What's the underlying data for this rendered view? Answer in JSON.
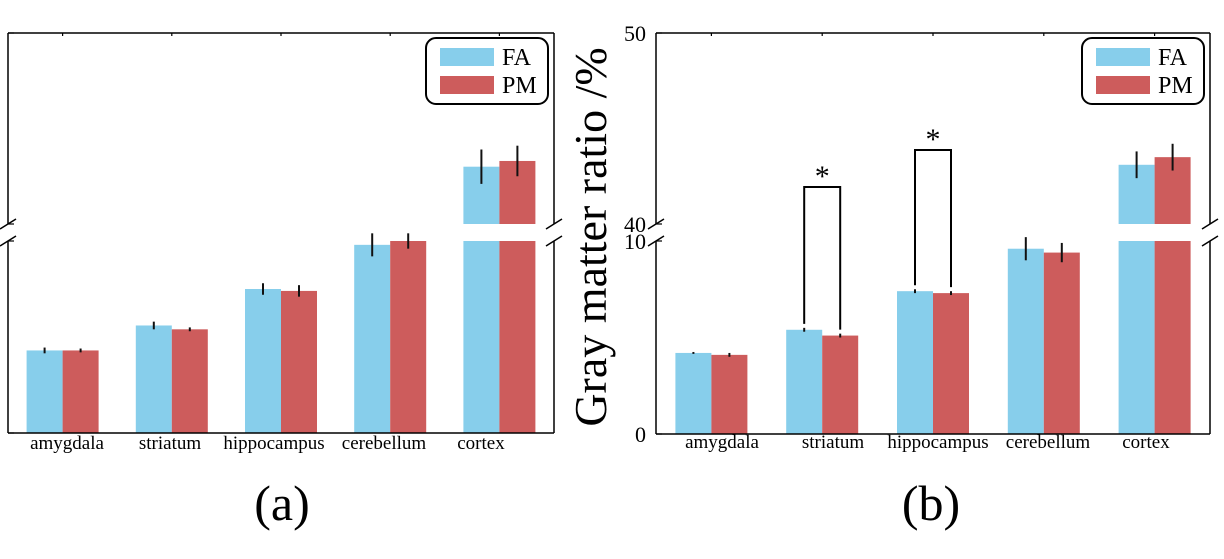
{
  "chart_data": [
    {
      "panel": "(a)",
      "type": "bar",
      "broken_axis": true,
      "categories": [
        "amygdala",
        "striatum",
        "hippocampus",
        "cerebellum",
        "cortex"
      ],
      "series": [
        {
          "name": "FA",
          "color": "#87CEEB",
          "values": [
            4.3,
            5.6,
            7.5,
            9.8,
            43.0
          ],
          "errors": [
            0.15,
            0.2,
            0.3,
            0.6,
            0.9
          ]
        },
        {
          "name": "PM",
          "color": "#CD5C5C",
          "values": [
            4.3,
            5.4,
            7.4,
            10.0,
            43.3
          ],
          "errors": [
            0.1,
            0.1,
            0.3,
            0.4,
            0.8
          ]
        }
      ],
      "legend": "top-right",
      "ylim_lower": [
        0,
        10
      ],
      "ylim_upper": [
        40,
        50
      ],
      "yticks": [],
      "significance": []
    },
    {
      "panel": "(b)",
      "type": "bar",
      "broken_axis": true,
      "categories": [
        "amygdala",
        "striatum",
        "hippocampus",
        "cerebellum",
        "cortex"
      ],
      "series": [
        {
          "name": "FA",
          "color": "#87CEEB",
          "values": [
            4.2,
            5.4,
            7.4,
            9.6,
            43.1
          ],
          "errors": [
            0.05,
            0.1,
            0.1,
            0.6,
            0.7
          ]
        },
        {
          "name": "PM",
          "color": "#CD5C5C",
          "values": [
            4.1,
            5.1,
            7.3,
            9.4,
            43.5
          ],
          "errors": [
            0.1,
            0.1,
            0.1,
            0.5,
            0.7
          ]
        }
      ],
      "legend": "top-right",
      "ylabel": "Gray matter ratio /%",
      "ylim_lower": [
        0,
        10
      ],
      "ylim_upper": [
        40,
        50
      ],
      "yticks": [
        "0",
        "10",
        "40",
        "50"
      ],
      "significance": [
        {
          "category": "striatum",
          "marker": "*"
        },
        {
          "category": "hippocampus",
          "marker": "*"
        }
      ]
    }
  ]
}
